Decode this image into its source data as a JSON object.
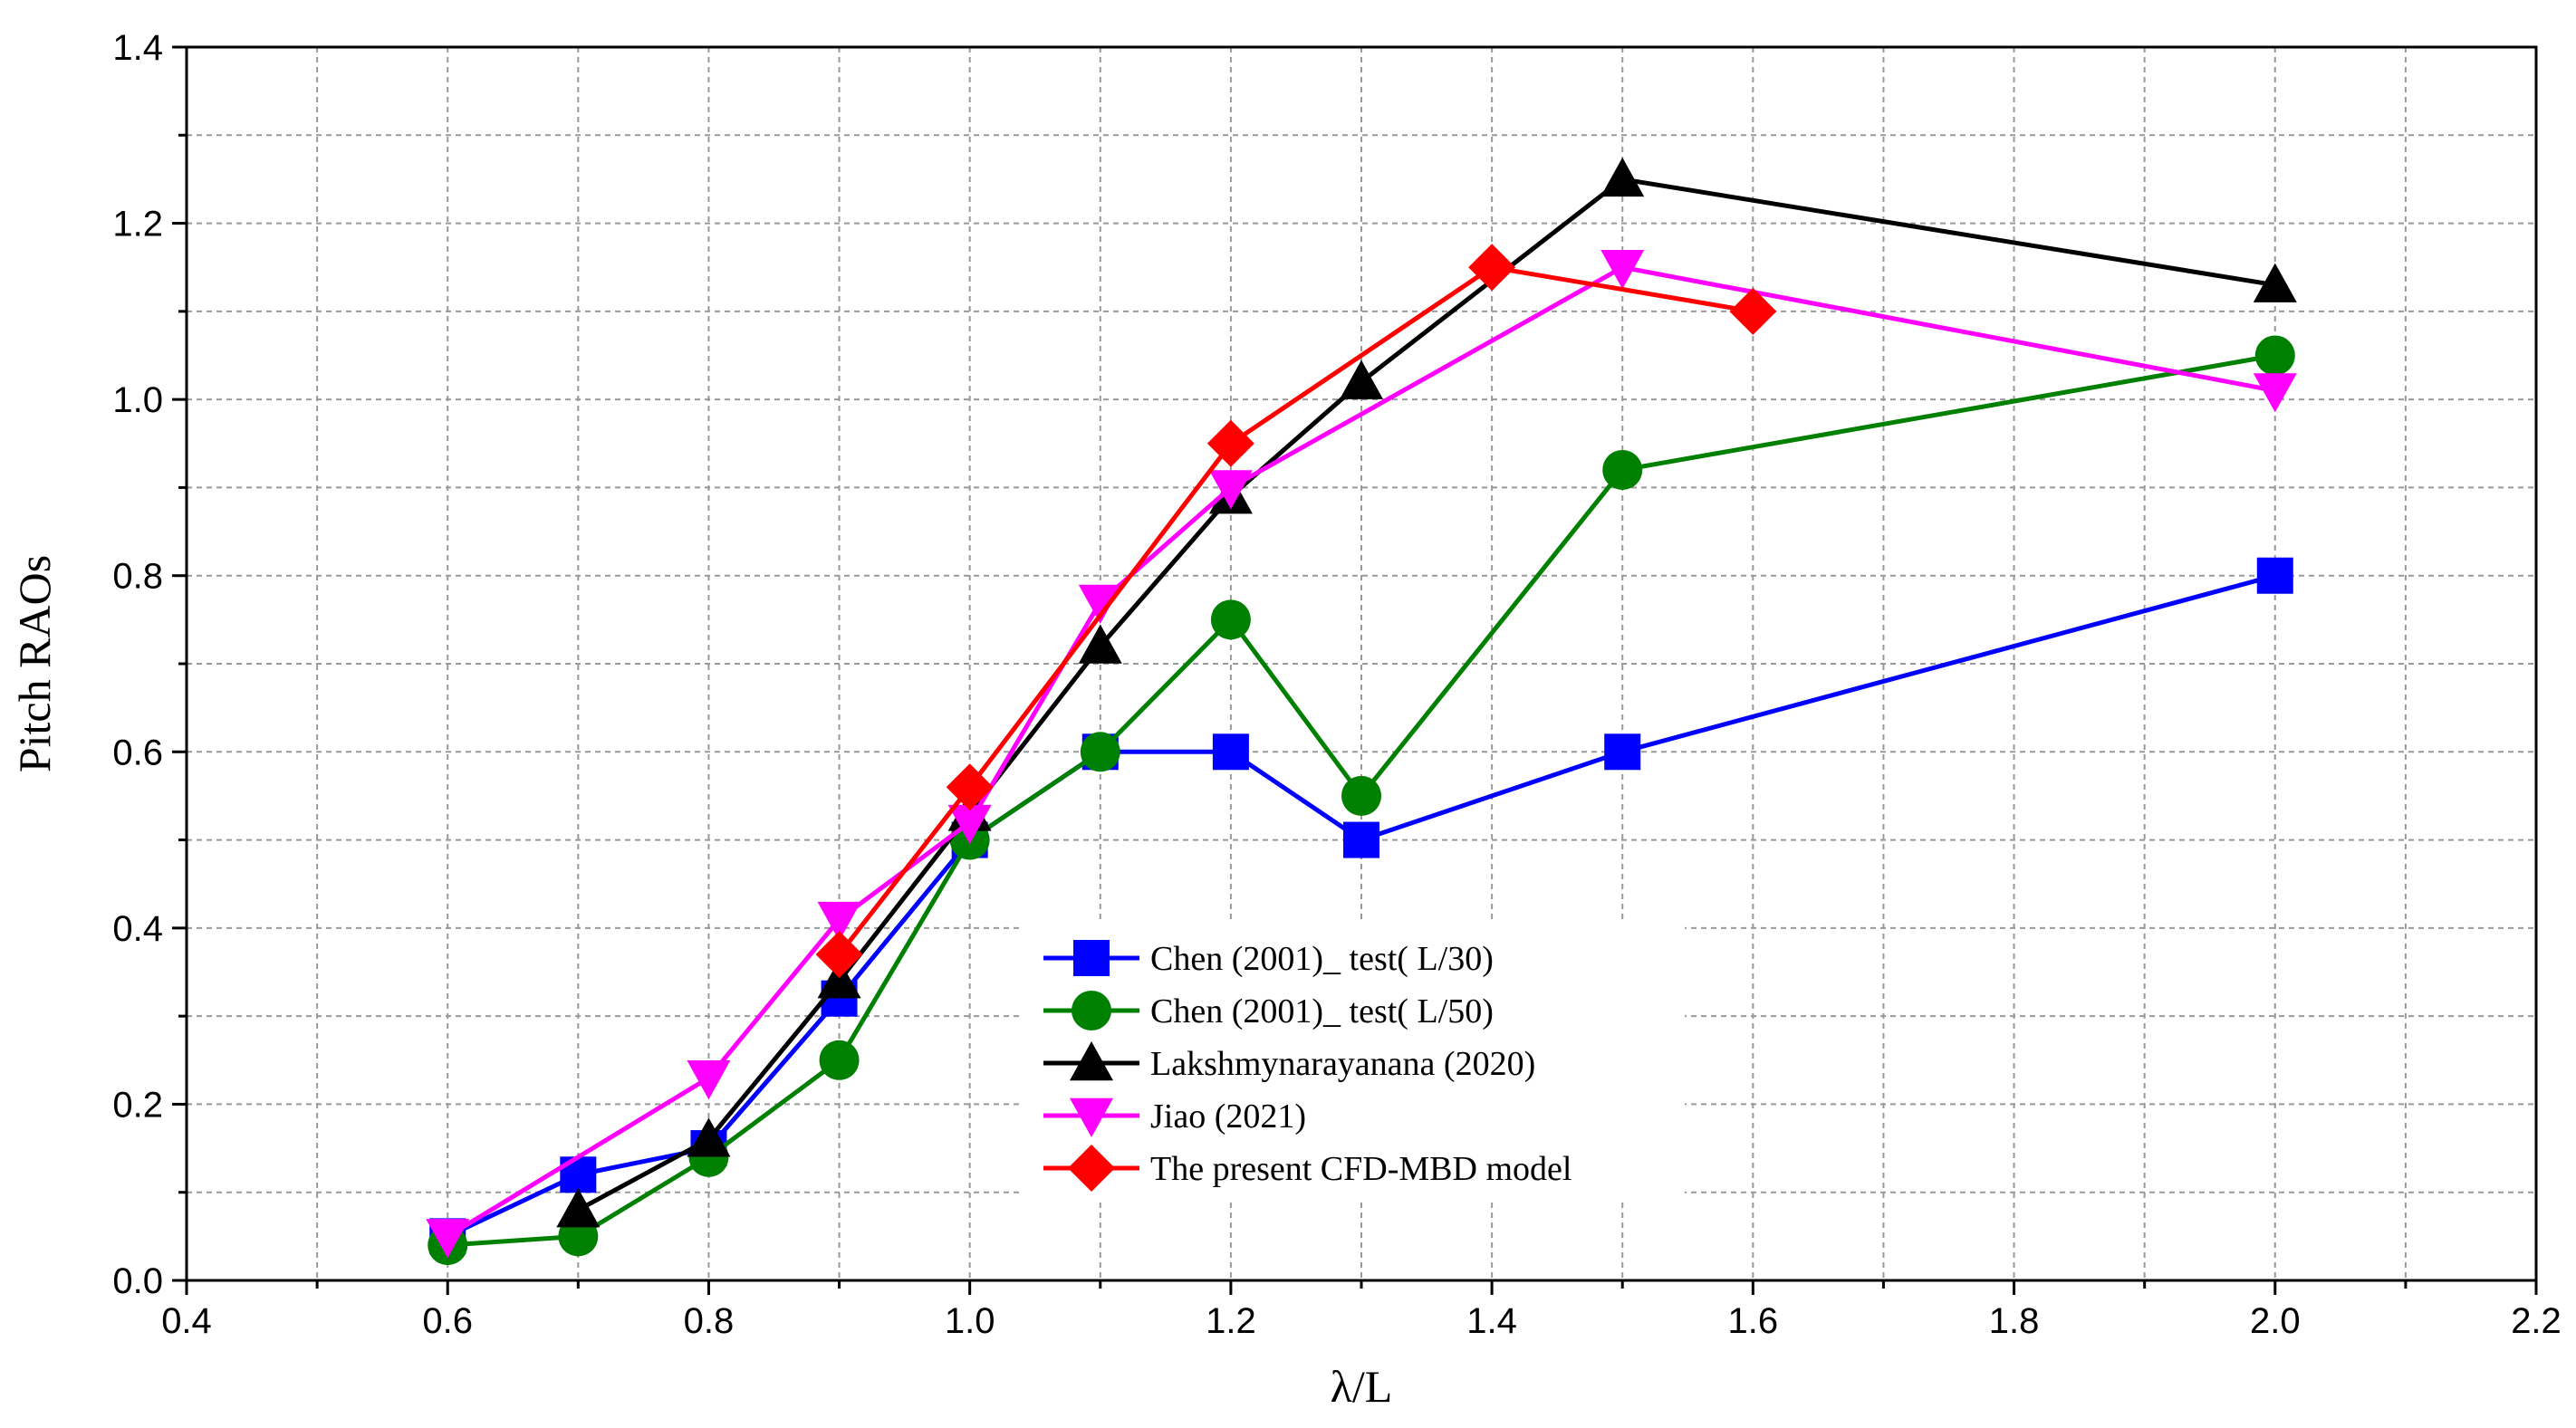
{
  "chart_data": {
    "type": "line",
    "title": "",
    "xlabel": "λ/L",
    "ylabel": "Pitch RAOs",
    "xlim": [
      0.4,
      2.2
    ],
    "ylim": [
      0.0,
      1.4
    ],
    "xticks": [
      "0.4",
      "0.6",
      "0.8",
      "1.0",
      "1.2",
      "1.4",
      "1.6",
      "1.8",
      "2.0",
      "2.2"
    ],
    "yticks": [
      "0.0",
      "0.2",
      "0.4",
      "0.6",
      "0.8",
      "1.0",
      "1.2",
      "1.4"
    ],
    "grid": true,
    "legend_position": "lower-center",
    "series": [
      {
        "name": "Chen (2001)_ test( L/30)",
        "color": "#0000ff",
        "marker": "square",
        "x": [
          0.6,
          0.7,
          0.8,
          0.9,
          1.0,
          1.1,
          1.2,
          1.3,
          1.5,
          2.0
        ],
        "y": [
          0.05,
          0.12,
          0.15,
          0.32,
          0.5,
          0.6,
          0.6,
          0.5,
          0.6,
          0.8
        ]
      },
      {
        "name": "Chen (2001)_ test( L/50)",
        "color": "#008000",
        "marker": "circle",
        "x": [
          0.6,
          0.7,
          0.8,
          0.9,
          1.0,
          1.1,
          1.2,
          1.3,
          1.5,
          2.0
        ],
        "y": [
          0.04,
          0.05,
          0.14,
          0.25,
          0.5,
          0.6,
          0.75,
          0.55,
          0.92,
          1.05
        ]
      },
      {
        "name": "Lakshmynarayanana (2020)",
        "color": "#000000",
        "marker": "triangle-up",
        "x": [
          0.7,
          0.8,
          0.9,
          1.0,
          1.1,
          1.2,
          1.3,
          1.5,
          2.0
        ],
        "y": [
          0.08,
          0.16,
          0.34,
          0.53,
          0.72,
          0.89,
          1.02,
          1.25,
          1.13
        ]
      },
      {
        "name": "Jiao (2021)",
        "color": "#ff00ff",
        "marker": "triangle-down",
        "x": [
          0.6,
          0.8,
          0.9,
          1.0,
          1.1,
          1.2,
          1.5,
          2.0
        ],
        "y": [
          0.05,
          0.23,
          0.41,
          0.52,
          0.77,
          0.9,
          1.15,
          1.01
        ]
      },
      {
        "name": "The present CFD-MBD model",
        "color": "#ff0000",
        "marker": "diamond",
        "x": [
          0.9,
          1.0,
          1.2,
          1.4,
          1.6
        ],
        "y": [
          0.37,
          0.56,
          0.95,
          1.15,
          1.1
        ]
      }
    ]
  }
}
